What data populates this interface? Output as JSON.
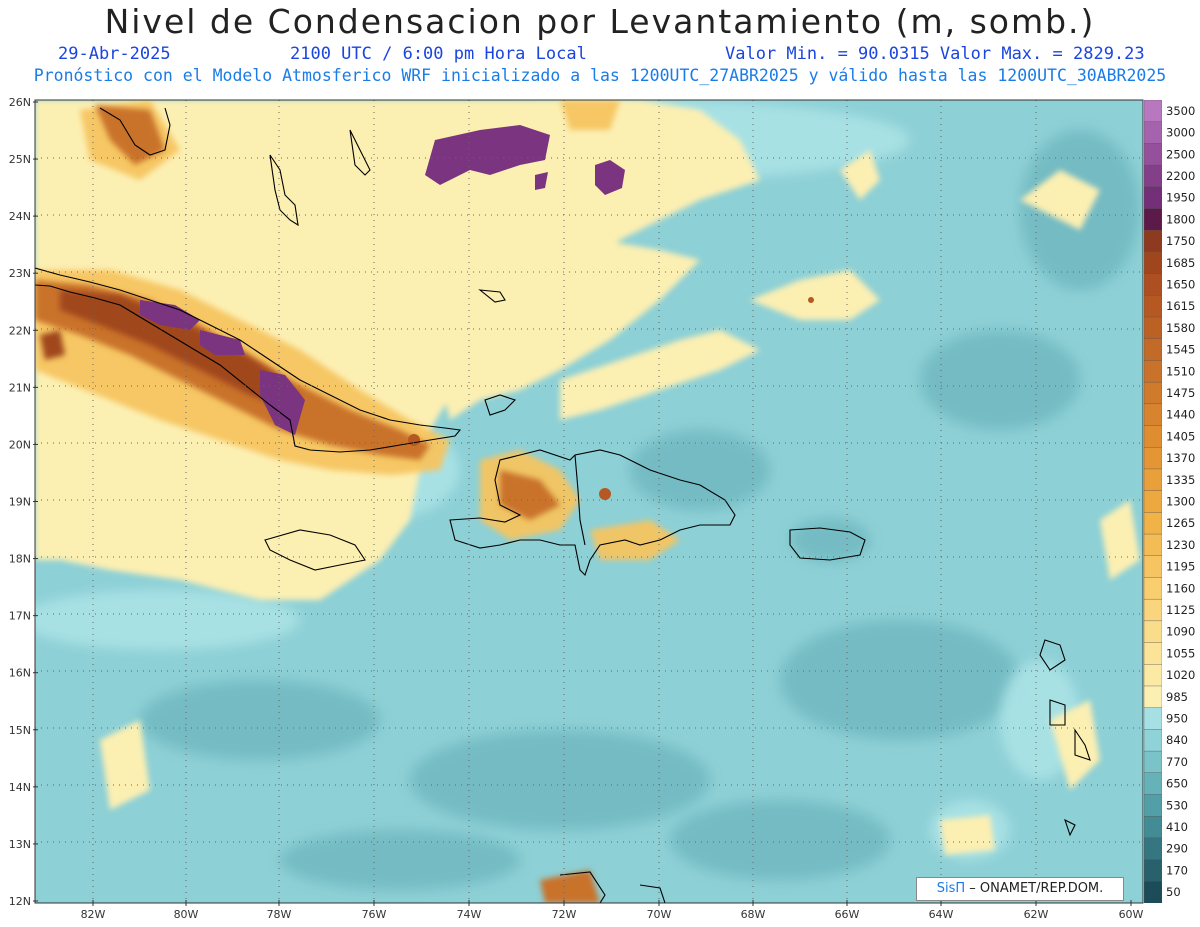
{
  "header": {
    "title": "Nivel de Condensacion por Levantamiento (m, somb.)",
    "date": "29-Abr-2025",
    "time": "2100 UTC / 6:00 pm Hora Local",
    "minmax": "Valor Min. = 90.0315  Valor Max. = 2829.23",
    "model_info": "Pronóstico con el Modelo Atmosferico WRF inicializado a las 1200UTC_27ABR2025 y válido hasta las  1200UTC_30ABR2025"
  },
  "axes": {
    "lat_labels": [
      "26N",
      "25N",
      "24N",
      "23N",
      "22N",
      "21N",
      "20N",
      "19N",
      "18N",
      "17N",
      "16N",
      "15N",
      "14N",
      "13N",
      "12N"
    ],
    "lon_labels": [
      "82W",
      "80W",
      "78W",
      "76W",
      "74W",
      "72W",
      "70W",
      "68W",
      "66W",
      "64W",
      "62W",
      "60W"
    ],
    "lat_range": [
      12,
      26
    ],
    "lon_range": [
      -83.3,
      -60
    ]
  },
  "colorbar": {
    "levels": [
      "3500",
      "3000",
      "2500",
      "2200",
      "1950",
      "1800",
      "1750",
      "1685",
      "1650",
      "1615",
      "1580",
      "1545",
      "1510",
      "1475",
      "1440",
      "1405",
      "1370",
      "1335",
      "1300",
      "1265",
      "1230",
      "1195",
      "1160",
      "1125",
      "1090",
      "1055",
      "1020",
      "985",
      "950",
      "840",
      "770",
      "650",
      "530",
      "410",
      "290",
      "170",
      "50"
    ],
    "colors": [
      "#b878bf",
      "#a663ad",
      "#94509b",
      "#843f89",
      "#732f77",
      "#5c1a4a",
      "#8e3a20",
      "#a0461f",
      "#ad4f21",
      "#b55822",
      "#bc6124",
      "#c26a27",
      "#c9722a",
      "#d07b2c",
      "#d8842e",
      "#df8d31",
      "#e49635",
      "#e99f3a",
      "#eea840",
      "#f1b248",
      "#f4bc54",
      "#f6c561",
      "#f8ce6f",
      "#f9d67d",
      "#fadd8b",
      "#fbe398",
      "#fbe9a4",
      "#fcefb2",
      "#a6e0e4",
      "#8fd3d8",
      "#7ac3c9",
      "#65b2b9",
      "#539fa8",
      "#438b95",
      "#357681",
      "#28616c",
      "#1b4c57"
    ]
  },
  "credit": {
    "brand": "SisΠ",
    "org": "– ONAMET/REP.DOM."
  }
}
